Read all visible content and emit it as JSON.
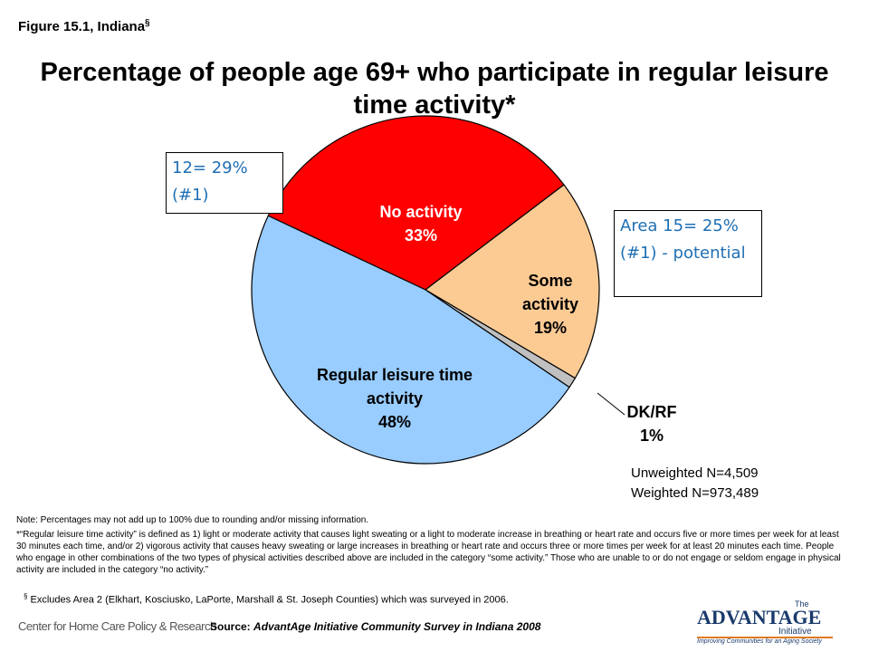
{
  "header": {
    "figure": "Figure 15.1, Indiana",
    "figure_mark": "§"
  },
  "chart_data": {
    "type": "pie",
    "title": "Percentage of people age 69+ who participate in regular leisure time activity*",
    "categories": [
      "No activity",
      "Some activity",
      "DK/RF",
      "Regular leisure time activity"
    ],
    "values": [
      33,
      19,
      1,
      48
    ],
    "value_labels": [
      "33%",
      "19%",
      "1%",
      "48%"
    ],
    "colors": [
      "#ff0000",
      "#fccb94",
      "#c0c0c0",
      "#99ccff"
    ]
  },
  "annotations": [
    {
      "text": "12= 29% (#1)",
      "color": "#1f6fb4"
    },
    {
      "text": "Area 15= 25% (#1) - potential",
      "color": "#1f6fb4"
    }
  ],
  "sample": [
    "Unweighted N=4,509",
    "Weighted N=973,489"
  ],
  "notes": [
    "Note: Percentages may not add up to 100% due to rounding and/or missing information.",
    "*“Regular leisure time activity” is defined as 1) light or moderate activity that causes light sweating or a light to moderate increase in breathing or heart rate and occurs five or more times per week for at least 30 minutes each time, and/or 2) vigorous activity that causes heavy sweating or large increases in breathing or heart rate and occurs three or more times per week for at least 20 minutes each time. People who engage in other combinations of the two types of physical activities described above are included in the category “some activity.” Those who are unable to or do not engage or seldom engage in physical activity are included in the category “no activity.”"
  ],
  "footnote": {
    "mark": "§",
    "text": "Excludes Area 2 (Elkhart, Kosciusko, LaPorte, Marshall & St. Joseph Counties) which was surveyed in 2006."
  },
  "source": {
    "label": "Source:",
    "text": "AdvantAge Initiative Community Survey in Indiana 2008"
  },
  "logos": {
    "left": "Center for Home Care Policy & Research",
    "right_top": "The",
    "right_main": "ADVANTAGE",
    "right_sub": "Initiative",
    "right_tag": "Improving Communities for an Aging Society"
  }
}
